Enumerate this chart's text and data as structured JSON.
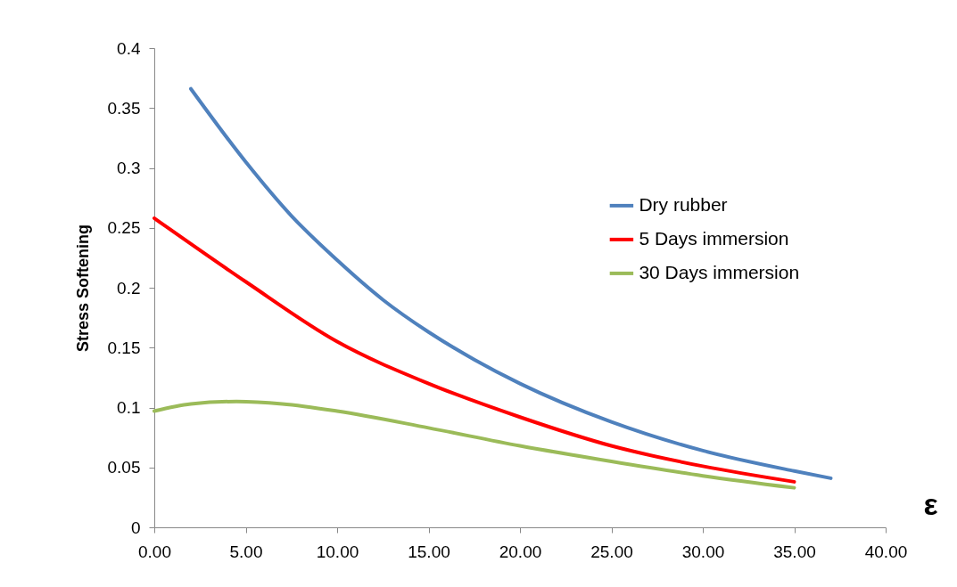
{
  "chart_data": {
    "type": "line",
    "xlabel": "ε",
    "ylabel": "Stress Softening",
    "xlim": [
      0,
      40
    ],
    "xticks": [
      {
        "value": 0,
        "label": "0.00"
      },
      {
        "value": 5,
        "label": "5.00"
      },
      {
        "value": 10,
        "label": "10.00"
      },
      {
        "value": 15,
        "label": "15.00"
      },
      {
        "value": 20,
        "label": "20.00"
      },
      {
        "value": 25,
        "label": "25.00"
      },
      {
        "value": 30,
        "label": "30.00"
      },
      {
        "value": 35,
        "label": "35.00"
      },
      {
        "value": 40,
        "label": "40.00"
      }
    ],
    "ylim": [
      0,
      0.4
    ],
    "yticks": [
      0,
      0.05,
      0.1,
      0.15,
      0.2,
      0.25,
      0.3,
      0.35,
      0.4
    ],
    "grid": false,
    "legend": "right",
    "series": [
      {
        "name": "Dry rubber",
        "color": "#4f81bd",
        "x": [
          2,
          5,
          7.5,
          10,
          12.5,
          15,
          17.5,
          20,
          25,
          30,
          35,
          37
        ],
        "values": [
          0.366,
          0.305,
          0.26,
          0.223,
          0.19,
          0.163,
          0.14,
          0.12,
          0.088,
          0.064,
          0.047,
          0.041
        ]
      },
      {
        "name": "5 Days immersion",
        "color": "#ff0000",
        "x": [
          0,
          5,
          10,
          15,
          20,
          25,
          30,
          35
        ],
        "values": [
          0.258,
          0.205,
          0.155,
          0.12,
          0.092,
          0.068,
          0.051,
          0.038
        ]
      },
      {
        "name": "30 Days immersion",
        "color": "#9bbb59",
        "x": [
          0,
          2,
          4.5,
          7,
          10,
          15,
          20,
          25,
          30,
          35
        ],
        "values": [
          0.097,
          0.103,
          0.105,
          0.103,
          0.097,
          0.083,
          0.068,
          0.055,
          0.043,
          0.033
        ]
      }
    ]
  }
}
